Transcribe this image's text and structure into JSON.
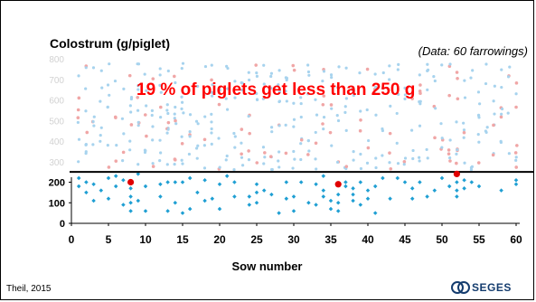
{
  "chart_data": {
    "type": "scatter",
    "title": "Colostrum (g/piglet)",
    "note": "(Data: 60 farrowings)",
    "annotation": "19 % of piglets get less than 250 g",
    "xlabel": "Sow number",
    "ylabel": "",
    "source": "Theil, 2015",
    "logo_text": "SEGES",
    "xlim": [
      0,
      60
    ],
    "ylim": [
      0,
      800
    ],
    "xticks": [
      0,
      5,
      10,
      15,
      20,
      25,
      30,
      35,
      40,
      45,
      50,
      55,
      60
    ],
    "yticks_shown": [
      0,
      100,
      200
    ],
    "yticks_faded": [
      300,
      400,
      500,
      600,
      700,
      800
    ],
    "threshold": 250,
    "colors": {
      "below": "#1f9fd3",
      "above_light": "#a7d3ee",
      "above_red_faded": "#f0a6a6",
      "highlight": "#e00000",
      "callout": "#ff0000"
    },
    "series": [
      {
        "values_below": [
          [
            1,
            220
          ],
          [
            1,
            180
          ],
          [
            2,
            150
          ],
          [
            2,
            200
          ],
          [
            3,
            110
          ],
          [
            3,
            190
          ],
          [
            4,
            160
          ],
          [
            5,
            220
          ],
          [
            5,
            120
          ],
          [
            6,
            230
          ],
          [
            6,
            180
          ],
          [
            7,
            90
          ],
          [
            7,
            210
          ],
          [
            8,
            130
          ],
          [
            8,
            100
          ],
          [
            8,
            60
          ],
          [
            8,
            170
          ],
          [
            9,
            240
          ],
          [
            9,
            110
          ],
          [
            10,
            60
          ],
          [
            10,
            180
          ],
          [
            12,
            190
          ],
          [
            12,
            130
          ],
          [
            13,
            60
          ],
          [
            13,
            200
          ],
          [
            14,
            200
          ],
          [
            14,
            100
          ],
          [
            15,
            200
          ],
          [
            15,
            50
          ],
          [
            16,
            70
          ],
          [
            16,
            220
          ],
          [
            17,
            150
          ],
          [
            18,
            210
          ],
          [
            18,
            110
          ],
          [
            19,
            120
          ],
          [
            20,
            70
          ],
          [
            20,
            190
          ],
          [
            21,
            230
          ],
          [
            22,
            130
          ],
          [
            22,
            200
          ],
          [
            24,
            130
          ],
          [
            24,
            90
          ],
          [
            25,
            190
          ],
          [
            25,
            150
          ],
          [
            25,
            100
          ],
          [
            26,
            160
          ],
          [
            27,
            140
          ],
          [
            28,
            50
          ],
          [
            29,
            120
          ],
          [
            29,
            200
          ],
          [
            30,
            130
          ],
          [
            30,
            60
          ],
          [
            31,
            200
          ],
          [
            32,
            100
          ],
          [
            33,
            90
          ],
          [
            33,
            190
          ],
          [
            34,
            230
          ],
          [
            34,
            160
          ],
          [
            34,
            130
          ],
          [
            35,
            70
          ],
          [
            35,
            110
          ],
          [
            36,
            140
          ],
          [
            36,
            100
          ],
          [
            36,
            60
          ],
          [
            37,
            200
          ],
          [
            37,
            180
          ],
          [
            38,
            140
          ],
          [
            38,
            110
          ],
          [
            38,
            170
          ],
          [
            39,
            90
          ],
          [
            39,
            200
          ],
          [
            40,
            160
          ],
          [
            40,
            120
          ],
          [
            41,
            50
          ],
          [
            41,
            180
          ],
          [
            42,
            220
          ],
          [
            43,
            120
          ],
          [
            44,
            220
          ],
          [
            45,
            200
          ],
          [
            46,
            170
          ],
          [
            46,
            120
          ],
          [
            47,
            200
          ],
          [
            48,
            130
          ],
          [
            49,
            160
          ],
          [
            50,
            220
          ],
          [
            51,
            180
          ],
          [
            52,
            240
          ],
          [
            52,
            200
          ],
          [
            52,
            160
          ],
          [
            52,
            130
          ],
          [
            53,
            210
          ],
          [
            53,
            170
          ],
          [
            54,
            200
          ],
          [
            55,
            180
          ],
          [
            58,
            160
          ],
          [
            60,
            210
          ],
          [
            60,
            190
          ]
        ]
      }
    ],
    "highlighted_points": [
      [
        8,
        200
      ],
      [
        36,
        190
      ],
      [
        52,
        240
      ]
    ]
  }
}
